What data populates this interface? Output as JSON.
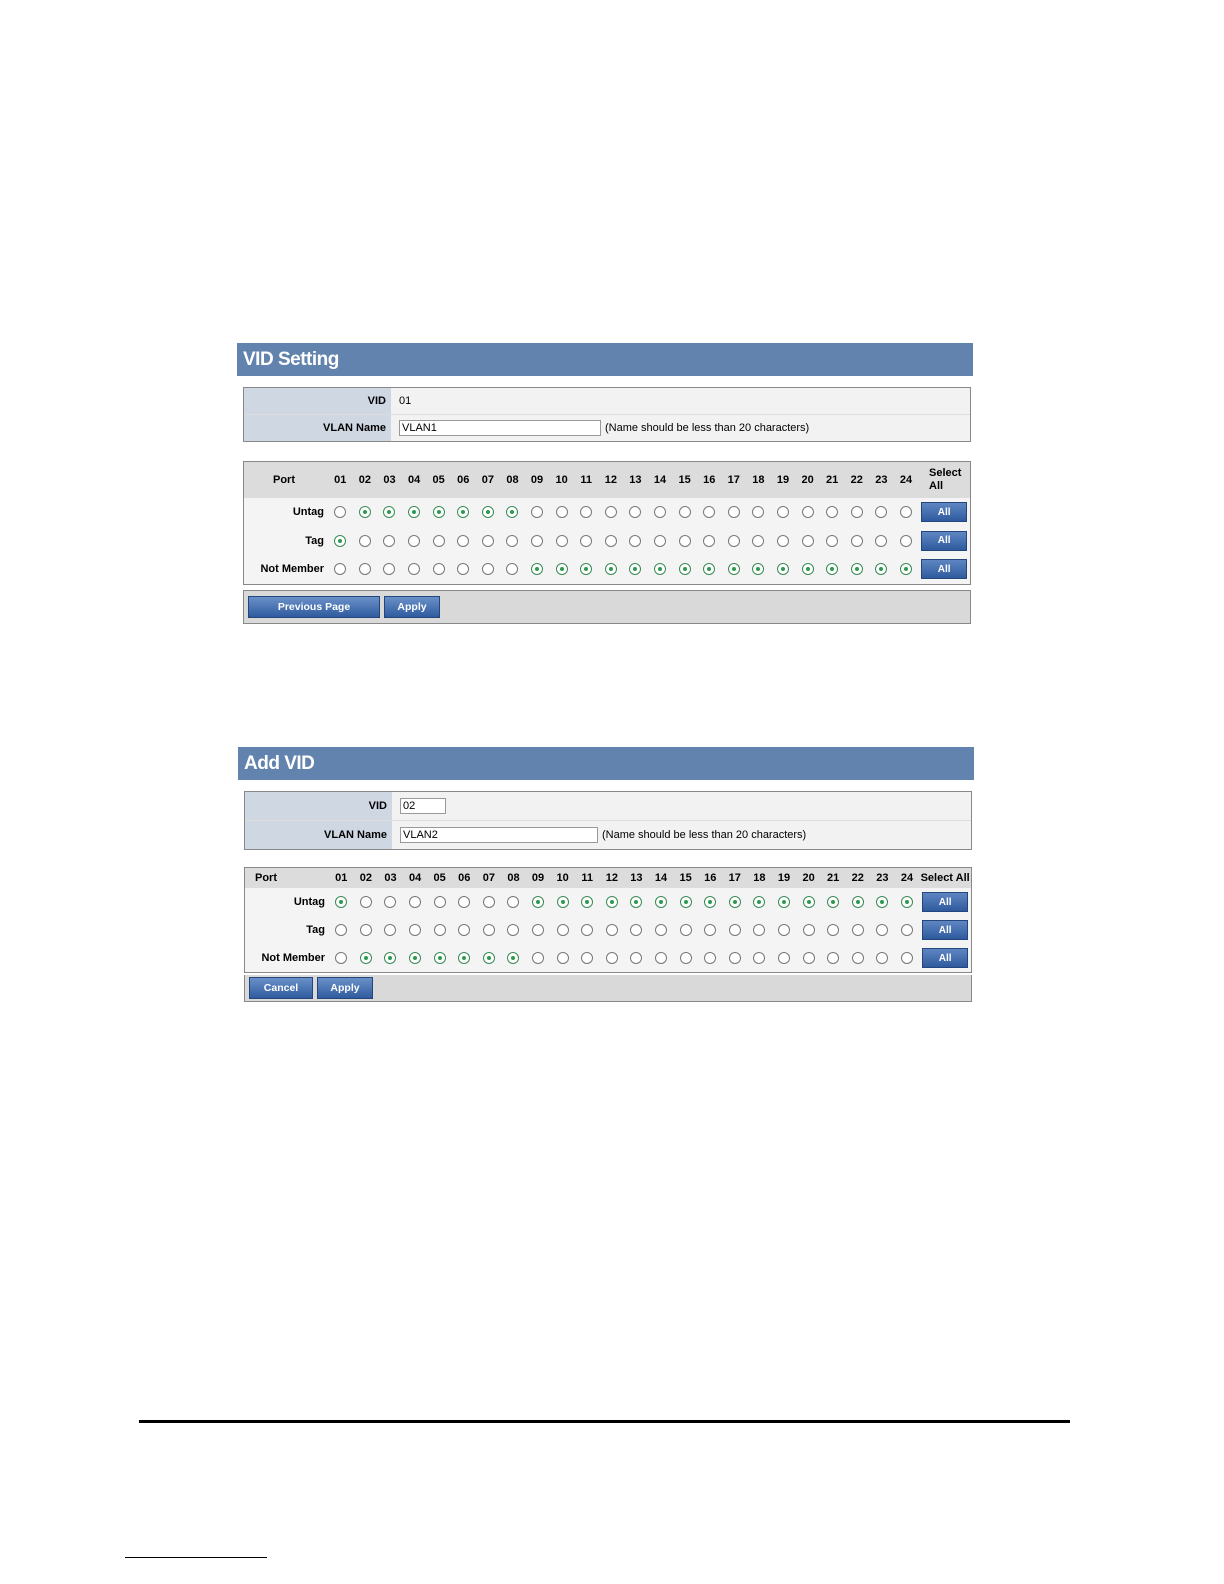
{
  "ports": [
    "01",
    "02",
    "03",
    "04",
    "05",
    "06",
    "07",
    "08",
    "09",
    "10",
    "11",
    "12",
    "13",
    "14",
    "15",
    "16",
    "17",
    "18",
    "19",
    "20",
    "21",
    "22",
    "23",
    "24"
  ],
  "row_labels": {
    "port": "Port",
    "untag": "Untag",
    "tag": "Tag",
    "not": "Not Member"
  },
  "all_label": "All",
  "vid_setting": {
    "title": "VID Setting",
    "vid_label": "VID",
    "vid_value": "01",
    "name_label": "VLAN Name",
    "name_value": "VLAN1",
    "hint": "(Name should be less than 20 characters)",
    "select_all": "Select All",
    "membership": [
      "tag",
      "untag",
      "untag",
      "untag",
      "untag",
      "untag",
      "untag",
      "untag",
      "not",
      "not",
      "not",
      "not",
      "not",
      "not",
      "not",
      "not",
      "not",
      "not",
      "not",
      "not",
      "not",
      "not",
      "not",
      "not"
    ],
    "buttons": [
      "Previous Page",
      "Apply"
    ]
  },
  "add_vid": {
    "title": "Add VID",
    "vid_label": "VID",
    "vid_value": "02",
    "name_label": "VLAN Name",
    "name_value": "VLAN2",
    "hint": "(Name should be less than 20 characters)",
    "select_all": "Select All",
    "membership": [
      "untag",
      "not",
      "not",
      "not",
      "not",
      "not",
      "not",
      "not",
      "untag",
      "untag",
      "untag",
      "untag",
      "untag",
      "untag",
      "untag",
      "untag",
      "untag",
      "untag",
      "untag",
      "untag",
      "untag",
      "untag",
      "untag",
      "untag"
    ],
    "buttons": [
      "Cancel",
      "Apply"
    ]
  },
  "colors": {
    "header": "#6283ad",
    "button": "#2f5b9f",
    "selected": "#2e9a4e"
  }
}
